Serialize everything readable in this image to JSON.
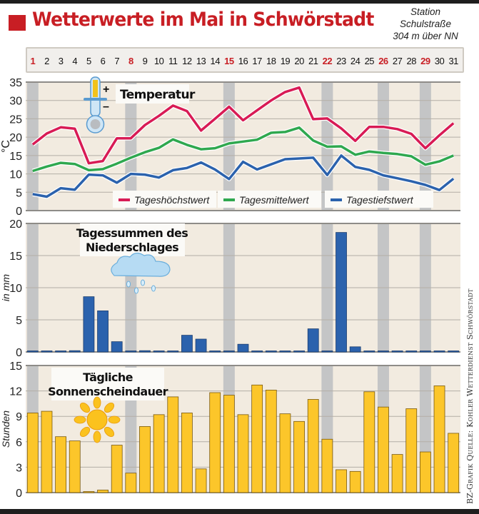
{
  "header": {
    "title": "Wetterwerte im Mai in Schwörstadt",
    "station_lines": [
      "Station",
      "Schulstraße",
      "304 m über NN"
    ]
  },
  "days": {
    "labels": [
      "1",
      "2",
      "3",
      "4",
      "5",
      "6",
      "7",
      "8",
      "9",
      "10",
      "11",
      "12",
      "13",
      "14",
      "15",
      "16",
      "17",
      "18",
      "19",
      "20",
      "21",
      "22",
      "23",
      "24",
      "25",
      "26",
      "27",
      "28",
      "29",
      "30",
      "31"
    ],
    "highlighted": [
      1,
      8,
      15,
      22,
      26,
      29
    ],
    "highlight_color": "#c81e24"
  },
  "colors": {
    "panel_bg": "#f2ebe0",
    "weekend_band": "#c4c5c6",
    "max_line": "#d81b55",
    "mean_line": "#2fa84f",
    "min_line": "#2b62ad",
    "precip_bar": "#2b62ad",
    "sun_bar": "#fcc62a"
  },
  "credit": "BZ-Grafik   Quelle: Kohler Wetterdienst Schwörstadt",
  "chart_data": [
    {
      "type": "line",
      "title": "Temperatur",
      "ylabel": "°C",
      "xlabel": "",
      "ylim": [
        0,
        35
      ],
      "yticks": [
        0,
        5,
        10,
        15,
        20,
        25,
        30,
        35
      ],
      "x": [
        1,
        2,
        3,
        4,
        5,
        6,
        7,
        8,
        9,
        10,
        11,
        12,
        13,
        14,
        15,
        16,
        17,
        18,
        19,
        20,
        21,
        22,
        23,
        24,
        25,
        26,
        27,
        28,
        29,
        30,
        31
      ],
      "grid": true,
      "legend_position": "bottom",
      "series": [
        {
          "name": "Tageshöchstwert",
          "values": [
            18.0,
            21.0,
            22.7,
            22.3,
            12.9,
            13.5,
            19.7,
            19.7,
            23.3,
            25.8,
            28.6,
            27.1,
            21.8,
            25.0,
            28.3,
            24.6,
            27.3,
            30.0,
            32.3,
            33.5,
            24.9,
            25.1,
            22.4,
            19.0,
            22.8,
            22.8,
            22.2,
            20.9,
            17.0,
            20.5,
            23.8
          ]
        },
        {
          "name": "Tagesmittelwert",
          "values": [
            10.8,
            12.0,
            13.0,
            12.7,
            11.0,
            11.3,
            12.8,
            14.4,
            15.9,
            17.1,
            19.4,
            17.9,
            16.7,
            17.0,
            18.3,
            18.8,
            19.3,
            21.2,
            21.4,
            22.6,
            19.1,
            17.4,
            17.5,
            15.2,
            16.1,
            15.7,
            15.4,
            14.8,
            12.5,
            13.4,
            15.0
          ]
        },
        {
          "name": "Tagestiefstwert",
          "values": [
            4.5,
            3.8,
            6.1,
            5.7,
            9.8,
            9.6,
            7.6,
            10.0,
            9.8,
            9.0,
            11.0,
            11.6,
            13.1,
            11.2,
            8.6,
            13.3,
            11.2,
            12.6,
            14.0,
            14.2,
            14.4,
            9.7,
            15.0,
            11.9,
            11.1,
            9.6,
            8.8,
            8.0,
            7.0,
            5.6,
            8.7
          ]
        }
      ]
    },
    {
      "type": "bar",
      "title": "Tagessummen des Niederschlages",
      "title_lines": [
        "Tagessummen des",
        "Niederschlages"
      ],
      "ylabel": "in mm",
      "ylim": [
        0,
        20
      ],
      "yticks": [
        0,
        5,
        10,
        15,
        20
      ],
      "x": [
        1,
        2,
        3,
        4,
        5,
        6,
        7,
        8,
        9,
        10,
        11,
        12,
        13,
        14,
        15,
        16,
        17,
        18,
        19,
        20,
        21,
        22,
        23,
        24,
        25,
        26,
        27,
        28,
        29,
        30,
        31
      ],
      "values": [
        0,
        0,
        0,
        0.2,
        8.6,
        6.4,
        1.6,
        0,
        0.2,
        0,
        0,
        2.6,
        2.0,
        0,
        0,
        1.2,
        0,
        0,
        0,
        0,
        3.6,
        0,
        18.6,
        0.8,
        0,
        0,
        0,
        0,
        0,
        0,
        0
      ],
      "grid": true
    },
    {
      "type": "bar",
      "title": "Tägliche Sonnenscheindauer",
      "title_lines": [
        "Tägliche",
        "Sonnenscheindauer"
      ],
      "ylabel": "Stunden",
      "ylim": [
        0,
        15
      ],
      "yticks": [
        0,
        3,
        6,
        9,
        12,
        15
      ],
      "x": [
        1,
        2,
        3,
        4,
        5,
        6,
        7,
        8,
        9,
        10,
        11,
        12,
        13,
        14,
        15,
        16,
        17,
        18,
        19,
        20,
        21,
        22,
        23,
        24,
        25,
        26,
        27,
        28,
        29,
        30,
        31
      ],
      "values": [
        9.4,
        9.6,
        6.6,
        6.1,
        0,
        0.3,
        5.6,
        2.3,
        7.8,
        9.2,
        11.3,
        9.4,
        2.8,
        11.8,
        11.5,
        9.2,
        12.7,
        12.1,
        9.3,
        8.4,
        11.0,
        6.3,
        2.7,
        2.5,
        11.9,
        10.1,
        4.5,
        9.9,
        4.8,
        12.6,
        7.0
      ],
      "grid": true
    }
  ]
}
